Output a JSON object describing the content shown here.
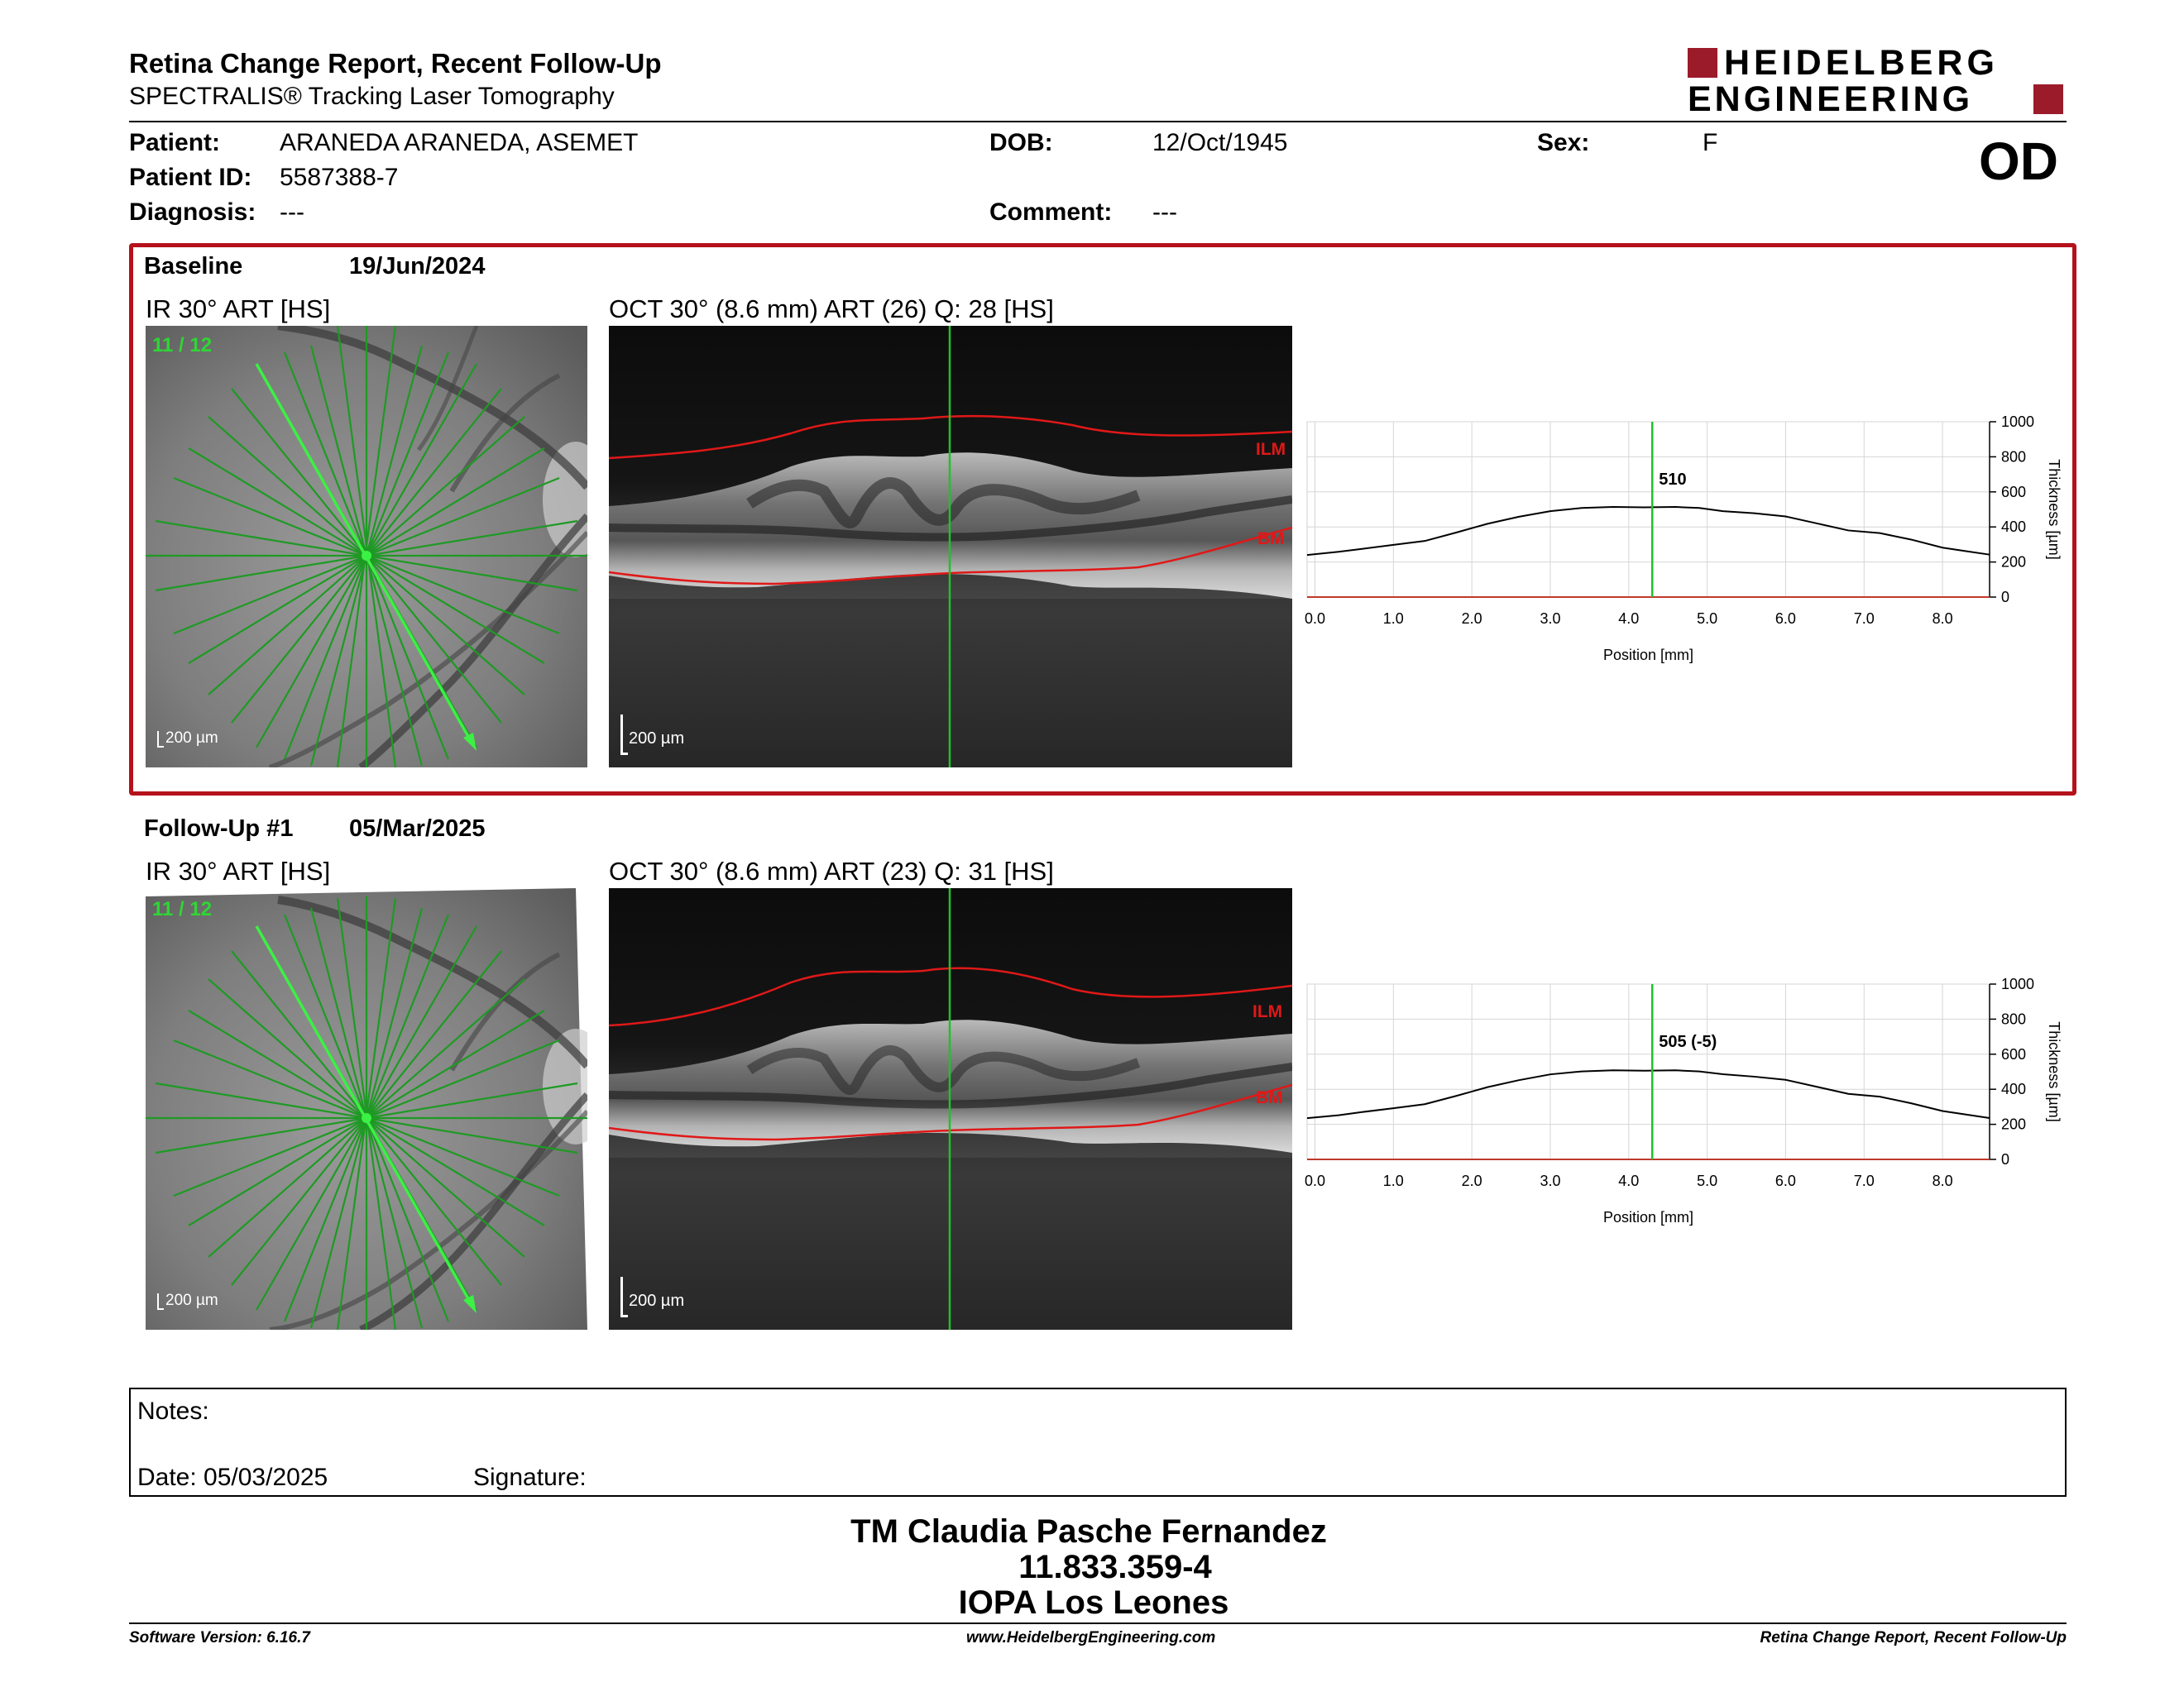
{
  "header": {
    "title": "Retina Change Report, Recent Follow-Up",
    "subtitle": "SPECTRALIS® Tracking Laser Tomography",
    "brand_line1": "HEIDELBERG",
    "brand_line2": "ENGINEERING",
    "brand_color": "#9b1b2a"
  },
  "patient": {
    "patient_label": "Patient:",
    "patient_value": "ARANEDA ARANEDA, ASEMET",
    "id_label": "Patient ID:",
    "id_value": "5587388-7",
    "diagnosis_label": "Diagnosis:",
    "diagnosis_value": "---",
    "dob_label": "DOB:",
    "dob_value": "12/Oct/1945",
    "comment_label": "Comment:",
    "comment_value": "---",
    "sex_label": "Sex:",
    "sex_value": "F",
    "eye": "OD"
  },
  "baseline": {
    "label": "Baseline",
    "date": "19/Jun/2024",
    "ir_caption": "IR 30° ART [HS]",
    "oct_caption": "OCT 30° (8.6 mm) ART (26) Q: 28 [HS]",
    "scan_index": "11 / 12",
    "ir_scale": "200 µm",
    "oct_scale": "200 µm",
    "ilm_label": "ILM",
    "bm_label": "BM"
  },
  "followup": {
    "label": "Follow-Up #1",
    "date": "05/Mar/2025",
    "ir_caption": "IR 30° ART [HS]",
    "oct_caption": "OCT 30° (8.6 mm) ART (23) Q: 31 [HS]",
    "scan_index": "11 / 12",
    "ir_scale": "200 µm",
    "oct_scale": "200 µm",
    "ilm_label": "ILM",
    "bm_label": "BM"
  },
  "chart_data": [
    {
      "type": "line",
      "title": "",
      "xlabel": "Position [mm]",
      "ylabel": "Thickness [µm]",
      "xlim": [
        -0.1,
        8.6
      ],
      "ylim": [
        0,
        1000
      ],
      "xticks": [
        "0.0",
        "1.0",
        "2.0",
        "3.0",
        "4.0",
        "5.0",
        "6.0",
        "7.0",
        "8.0"
      ],
      "yticks": [
        "0",
        "200",
        "400",
        "600",
        "800",
        "1000"
      ],
      "grid": true,
      "cursor_x": 4.3,
      "cursor_label": "510",
      "series": [
        {
          "x": [
            -0.1,
            0.3,
            0.6,
            1.0,
            1.4,
            1.8,
            2.2,
            2.6,
            3.0,
            3.4,
            3.8,
            4.2,
            4.6,
            4.9,
            5.2,
            5.6,
            6.0,
            6.4,
            6.8,
            7.2,
            7.6,
            8.0,
            8.3,
            8.6
          ],
          "values": [
            240,
            258,
            275,
            298,
            320,
            368,
            418,
            458,
            490,
            508,
            514,
            512,
            514,
            508,
            490,
            478,
            460,
            420,
            380,
            365,
            328,
            282,
            262,
            242
          ]
        }
      ]
    },
    {
      "type": "line",
      "title": "",
      "xlabel": "Position [mm]",
      "ylabel": "Thickness [µm]",
      "xlim": [
        -0.1,
        8.6
      ],
      "ylim": [
        0,
        1000
      ],
      "xticks": [
        "0.0",
        "1.0",
        "2.0",
        "3.0",
        "4.0",
        "5.0",
        "6.0",
        "7.0",
        "8.0"
      ],
      "yticks": [
        "0",
        "200",
        "400",
        "600",
        "800",
        "1000"
      ],
      "grid": true,
      "cursor_x": 4.3,
      "cursor_label": "505 (-5)",
      "series": [
        {
          "x": [
            -0.1,
            0.3,
            0.6,
            1.0,
            1.4,
            1.8,
            2.2,
            2.6,
            3.0,
            3.4,
            3.8,
            4.2,
            4.6,
            4.9,
            5.2,
            5.6,
            6.0,
            6.4,
            6.8,
            7.2,
            7.6,
            8.0,
            8.3,
            8.6
          ],
          "values": [
            235,
            252,
            270,
            292,
            315,
            362,
            412,
            452,
            485,
            502,
            508,
            506,
            508,
            502,
            486,
            472,
            454,
            414,
            374,
            358,
            320,
            276,
            256,
            236
          ]
        }
      ]
    }
  ],
  "notes": {
    "notes_label": "Notes:",
    "date_label": "Date: 05/03/2025",
    "signature_label": "Signature:"
  },
  "signatory": {
    "name": "TM Claudia Pasche Fernandez",
    "id": "11.833.359-4",
    "org": "IOPA Los Leones"
  },
  "footer": {
    "software": "Software Version: 6.16.7",
    "website": "www.HeidelbergEngineering.com",
    "report": "Retina Change Report, Recent Follow-Up"
  },
  "colors": {
    "frame_red": "#b5121b",
    "scan_green": "#22c02a",
    "layer_red": "#e01818"
  }
}
